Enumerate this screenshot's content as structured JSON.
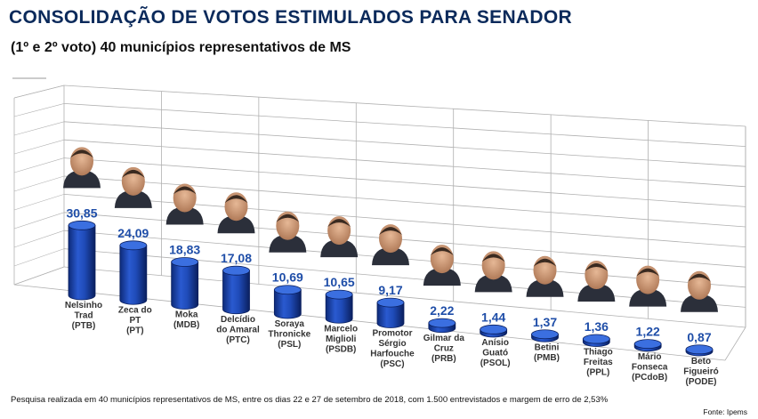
{
  "title": "CONSOLIDAÇÃO DE VOTOS ESTIMULADOS PARA SENADOR",
  "subtitle": "(1º e 2º voto) 40 municípios representativos de MS",
  "footnote": "Pesquisa realizada em 40 municípios representativos de MS, entre os dias 22 e 27 de setembro de 2018, com 1.500 entrevistados e margem de erro de 2,53%",
  "source": "Fonte: Ipems",
  "colors": {
    "bar": "#1a3fa0",
    "bar_top": "#3b6fe0",
    "value_text": "#1f4ea8",
    "title": "#0b2a5b",
    "grid": "#b0b0b0"
  },
  "chart_data": {
    "type": "bar",
    "title": "CONSOLIDAÇÃO DE VOTOS ESTIMULADOS PARA SENADOR",
    "subtitle": "(1º e 2º voto) 40 municípios representativos de MS",
    "categories": [
      [
        "Nelsinho",
        "Trad",
        "(PTB)"
      ],
      [
        "Zeca do",
        "PT",
        "(PT)"
      ],
      [
        "Moka",
        "(MDB)"
      ],
      [
        "Delcídio",
        "do Amaral",
        "(PTC)"
      ],
      [
        "Soraya",
        "Thronicke",
        "(PSL)"
      ],
      [
        "Marcelo",
        "Miglioli",
        "(PSDB)"
      ],
      [
        "Promotor",
        "Sérgio",
        "Harfouche",
        "(PSC)"
      ],
      [
        "Gilmar da",
        "Cruz",
        "(PRB)"
      ],
      [
        "Anísio",
        "Guató",
        "(PSOL)"
      ],
      [
        "Betini",
        "(PMB)"
      ],
      [
        "Thiago",
        "Freitas",
        "(PPL)"
      ],
      [
        "Mário",
        "Fonseca",
        "(PCdoB)"
      ],
      [
        "Beto",
        "Figueiró",
        "(PODE)"
      ]
    ],
    "values": [
      30.85,
      24.09,
      18.83,
      17.08,
      10.69,
      10.65,
      9.17,
      2.22,
      1.44,
      1.37,
      1.36,
      1.22,
      0.87
    ],
    "value_labels": [
      "30,85",
      "24,09",
      "18,83",
      "17,08",
      "10,69",
      "10,65",
      "9,17",
      "2,22",
      "1,44",
      "1,37",
      "1,36",
      "1,22",
      "0,87"
    ],
    "ylim": [
      0,
      40
    ],
    "grid": true,
    "legend": "none",
    "style": "3d-cylinder"
  }
}
